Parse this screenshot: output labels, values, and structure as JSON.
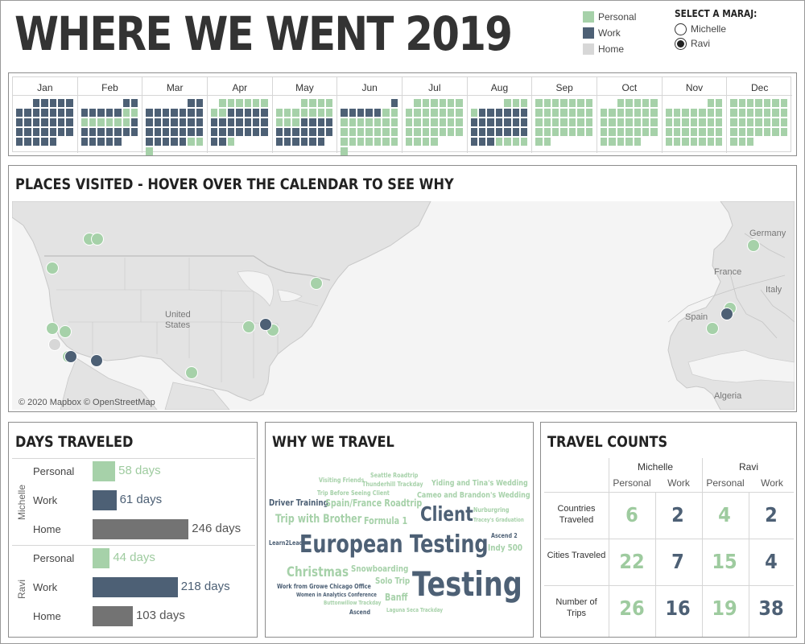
{
  "header": {
    "title": "WHERE WE WENT 2019"
  },
  "colors": {
    "personal": "#a6d1a9",
    "work": "#4d6075",
    "home": "#d7d7d7",
    "home_bar": "#737373",
    "personal_text": "#9ecb9f",
    "work_text": "#4d6075"
  },
  "legend": {
    "items": [
      {
        "label": "Personal",
        "color": "#a6d1a9"
      },
      {
        "label": "Work",
        "color": "#4d6075"
      },
      {
        "label": "Home",
        "color": "#d7d7d7"
      }
    ]
  },
  "selector": {
    "title": "SELECT A MARAJ:",
    "options": [
      "Michelle",
      "Ravi"
    ],
    "selected": "Ravi"
  },
  "calendar": {
    "months": [
      "Jan",
      "Feb",
      "Mar",
      "Apr",
      "May",
      "Jun",
      "Jul",
      "Aug",
      "Sep",
      "Oct",
      "Nov",
      "Dec"
    ],
    "start_weekday": 2,
    "personal_days": [
      39,
      40,
      41,
      42,
      43,
      44,
      45,
      46,
      88,
      89,
      90,
      91,
      92,
      93,
      94,
      95,
      96,
      97,
      98,
      120,
      121,
      122,
      123,
      124,
      125,
      126,
      127,
      128,
      129,
      130,
      131,
      132,
      133,
      134,
      158,
      159,
      160,
      161,
      162,
      163,
      164,
      165,
      166,
      167,
      168,
      169,
      170,
      171,
      172,
      173,
      174,
      175,
      176,
      177,
      178,
      179,
      180,
      181,
      182,
      183,
      184,
      185,
      186,
      187,
      188,
      189,
      190,
      191,
      192,
      193,
      194,
      195,
      196,
      197,
      198,
      199,
      200,
      201,
      202,
      203,
      204,
      205,
      206,
      207,
      208,
      209,
      210,
      211,
      212,
      213,
      214,
      215,
      216,
      240,
      241,
      242,
      243,
      244,
      245,
      246,
      247,
      248,
      249,
      250,
      251,
      252,
      253,
      254,
      255,
      256,
      257,
      258,
      259,
      260,
      261,
      262,
      263,
      264,
      265,
      266,
      267,
      268,
      269,
      270,
      271,
      272,
      273,
      274,
      275,
      276,
      277,
      278,
      279,
      280,
      281,
      282,
      283,
      284,
      285,
      286,
      287,
      288,
      289,
      290,
      291,
      292,
      293,
      294,
      295,
      296,
      297,
      298,
      299,
      300,
      301,
      302,
      303,
      304,
      305,
      306,
      307,
      308,
      309,
      310,
      311,
      312,
      313,
      314,
      315,
      316,
      317,
      318,
      319,
      320,
      321,
      322,
      323,
      324,
      325,
      326,
      327,
      328,
      329,
      330,
      331,
      332,
      333,
      334,
      335,
      336,
      337,
      338,
      339,
      340,
      341,
      342,
      343,
      344,
      345,
      346,
      347,
      348,
      349,
      350,
      351,
      352,
      353,
      354,
      355,
      356,
      357,
      358,
      359,
      360,
      361,
      362,
      363,
      364,
      365
    ],
    "work_days": [
      1,
      2,
      3,
      4,
      5,
      6,
      7,
      8,
      9,
      10,
      11,
      12,
      13,
      14,
      15,
      16,
      17,
      18,
      19,
      20,
      21,
      22,
      23,
      24,
      25,
      26,
      27,
      28,
      29,
      30,
      31,
      32,
      33,
      34,
      35,
      36,
      37,
      38,
      47,
      48,
      49,
      50,
      51,
      52,
      53,
      54,
      55,
      56,
      57,
      58,
      59,
      60,
      61,
      62,
      63,
      64,
      65,
      66,
      67,
      68,
      69,
      70,
      71,
      72,
      73,
      74,
      75,
      76,
      77,
      78,
      79,
      80,
      81,
      82,
      83,
      84,
      85,
      86,
      87,
      99,
      100,
      101,
      102,
      103,
      104,
      105,
      106,
      107,
      108,
      109,
      110,
      111,
      112,
      113,
      114,
      115,
      116,
      117,
      118,
      119,
      135,
      136,
      137,
      138,
      139,
      140,
      141,
      142,
      143,
      144,
      145,
      146,
      147,
      148,
      149,
      150,
      151,
      152,
      153,
      154,
      155,
      156,
      157,
      217,
      218,
      219,
      220,
      221,
      222,
      223,
      224,
      225,
      226,
      227,
      228,
      229,
      230,
      231,
      232,
      233,
      234,
      235,
      236,
      237,
      238,
      239
    ]
  },
  "map": {
    "title": "PLACES VISITED - HOVER OVER THE CALENDAR TO SEE WHY",
    "attribution": "© 2020 Mapbox © OpenStreetMap",
    "labels": [
      {
        "text": "United States"
      },
      {
        "text": "Germany"
      },
      {
        "text": "France"
      },
      {
        "text": "Italy"
      },
      {
        "text": "Spain"
      },
      {
        "text": "Algeria"
      }
    ],
    "places": [
      {
        "type": "personal"
      },
      {
        "type": "personal"
      },
      {
        "type": "personal"
      },
      {
        "type": "personal"
      },
      {
        "type": "personal"
      },
      {
        "type": "home"
      },
      {
        "type": "personal"
      },
      {
        "type": "work"
      },
      {
        "type": "work"
      },
      {
        "type": "personal"
      },
      {
        "type": "personal"
      },
      {
        "type": "work"
      },
      {
        "type": "personal"
      },
      {
        "type": "personal"
      },
      {
        "type": "personal"
      },
      {
        "type": "personal"
      },
      {
        "type": "work"
      },
      {
        "type": "personal"
      }
    ]
  },
  "days_traveled": {
    "title": "DAYS TRAVELED",
    "people": [
      {
        "name": "Michelle",
        "rows": [
          {
            "category": "Personal",
            "days": 58,
            "label": "58 days"
          },
          {
            "category": "Work",
            "days": 61,
            "label": "61 days"
          },
          {
            "category": "Home",
            "days": 246,
            "label": "246 days"
          }
        ]
      },
      {
        "name": "Ravi",
        "rows": [
          {
            "category": "Personal",
            "days": 44,
            "label": "44 days"
          },
          {
            "category": "Work",
            "days": 218,
            "label": "218 days"
          },
          {
            "category": "Home",
            "days": 103,
            "label": "103 days"
          }
        ]
      }
    ]
  },
  "why_we_travel": {
    "title": "WHY WE TRAVEL",
    "words": [
      {
        "text": "Seattle Roadtrip",
        "type": "personal"
      },
      {
        "text": "Visiting Friends",
        "type": "personal"
      },
      {
        "text": "Thunderhill Trackday",
        "type": "personal"
      },
      {
        "text": "Yiding and Tina's Wedding",
        "type": "personal"
      },
      {
        "text": "Trip Before Seeing Client",
        "type": "personal"
      },
      {
        "text": "Cameo and Brandon's Wedding",
        "type": "personal"
      },
      {
        "text": "Driver Training",
        "type": "work"
      },
      {
        "text": "Spain/France Roadtrip",
        "type": "personal"
      },
      {
        "text": "Client",
        "type": "work"
      },
      {
        "text": "Nurburgring",
        "type": "personal"
      },
      {
        "text": "Trip with Brother",
        "type": "personal"
      },
      {
        "text": "Formula 1",
        "type": "personal"
      },
      {
        "text": "Tracey's Graduation",
        "type": "personal"
      },
      {
        "text": "Ascend 2",
        "type": "work"
      },
      {
        "text": "Learn2Lead",
        "type": "work"
      },
      {
        "text": "European Testing",
        "type": "work"
      },
      {
        "text": "Indy 500",
        "type": "personal"
      },
      {
        "text": "Christmas",
        "type": "personal"
      },
      {
        "text": "Snowboarding",
        "type": "personal"
      },
      {
        "text": "Solo Trip",
        "type": "personal"
      },
      {
        "text": "Testing",
        "type": "work"
      },
      {
        "text": "Work from Growe Chicago Office",
        "type": "work"
      },
      {
        "text": "Women in Analytics Conference",
        "type": "work"
      },
      {
        "text": "Banff",
        "type": "personal"
      },
      {
        "text": "Buttonwillow Trackday",
        "type": "personal"
      },
      {
        "text": "Ascend",
        "type": "work"
      },
      {
        "text": "Laguna Seca Trackday",
        "type": "personal"
      }
    ]
  },
  "travel_counts": {
    "title": "TRAVEL COUNTS",
    "people": [
      "Michelle",
      "Ravi"
    ],
    "subheaders": [
      "Personal",
      "Work",
      "Personal",
      "Work"
    ],
    "rows": [
      {
        "label": "Countries Traveled",
        "values": [
          6,
          2,
          4,
          2
        ]
      },
      {
        "label": "Cities Traveled",
        "values": [
          22,
          7,
          15,
          4
        ]
      },
      {
        "label": "Number of Trips",
        "values": [
          26,
          16,
          19,
          38
        ]
      }
    ]
  }
}
